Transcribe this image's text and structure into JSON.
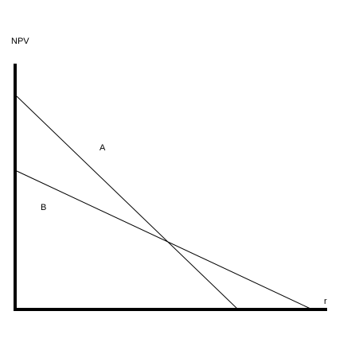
{
  "diagram": {
    "y_axis_label": "NPV",
    "x_axis_label": "r",
    "lines": [
      {
        "name": "A",
        "label": "A"
      },
      {
        "name": "B",
        "label": "B"
      }
    ],
    "colors": {
      "axis": "#000000",
      "line": "#000000",
      "background": "#ffffff"
    }
  }
}
